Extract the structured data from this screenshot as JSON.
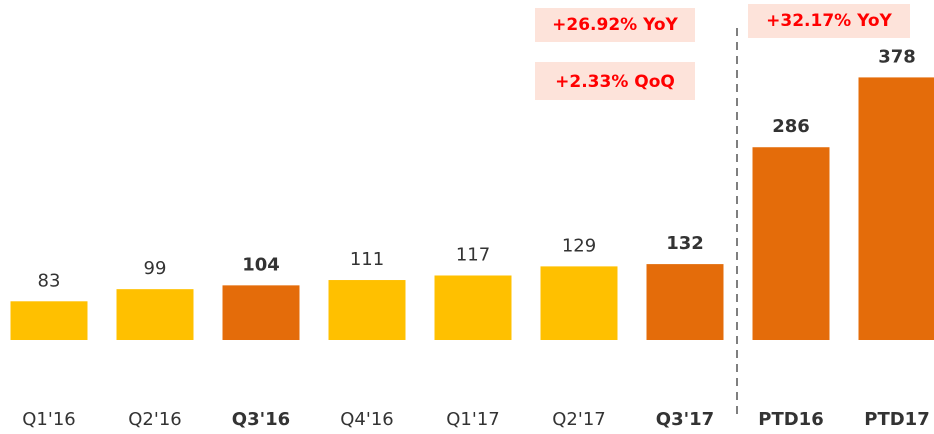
{
  "chart_data": {
    "type": "bar",
    "categories": [
      "Q1'16",
      "Q2'16",
      "Q3'16",
      "Q4'16",
      "Q1'17",
      "Q2'17",
      "Q3'17",
      "PTD16",
      "PTD17"
    ],
    "values": [
      83,
      99,
      104,
      111,
      117,
      129,
      132,
      286,
      378
    ],
    "colors": [
      "#ffc000",
      "#ffc000",
      "#e46c0a",
      "#ffc000",
      "#ffc000",
      "#ffc000",
      "#e46c0a",
      "#e46c0a",
      "#e46c0a"
    ],
    "highlight_color": "#e46c0a",
    "ylim": [
      32,
      480
    ],
    "annotations": [
      "+26.92% YoY",
      "+2.33% QoQ",
      "+32.17% YoY"
    ]
  }
}
